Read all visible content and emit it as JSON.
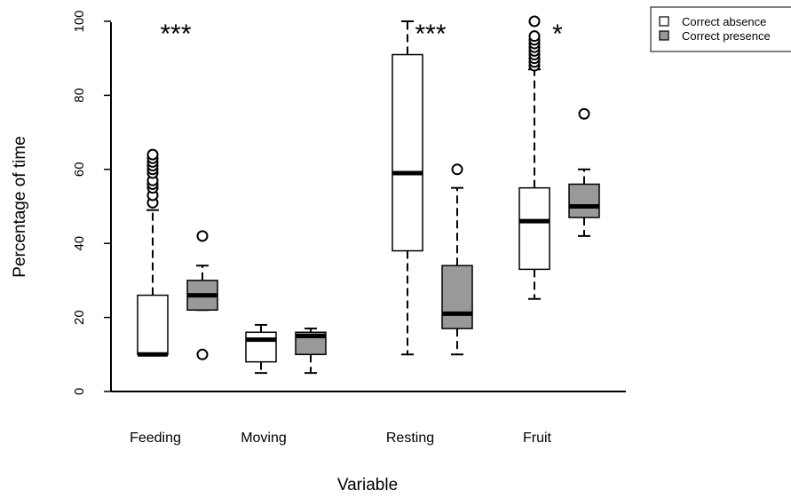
{
  "chart_data": {
    "type": "boxplot",
    "xlabel": "Variable",
    "ylabel": "Percentage of time",
    "ylim": [
      0,
      100
    ],
    "yticks": [
      "0",
      "20",
      "40",
      "60",
      "80",
      "100"
    ],
    "categories": [
      "Feeding",
      "Moving",
      "Resting",
      "Fruit"
    ],
    "series": [
      {
        "name": "Correct absence",
        "color": "#ffffff",
        "boxes": [
          {
            "min": 10,
            "q1": 10,
            "median": 10,
            "q3": 26,
            "max": 49,
            "outliers": [
              51,
              53,
              55,
              56,
              57,
              59,
              60,
              61,
              62,
              63,
              64
            ]
          },
          {
            "min": 5,
            "q1": 8,
            "median": 14,
            "q3": 16,
            "max": 18,
            "outliers": []
          },
          {
            "min": 10,
            "q1": 38,
            "median": 59,
            "q3": 91,
            "max": 100,
            "outliers": []
          },
          {
            "min": 25,
            "q1": 33,
            "median": 46,
            "q3": 55,
            "max": 87,
            "outliers": [
              88,
              89,
              90,
              91,
              92,
              93,
              94,
              95,
              96,
              100
            ]
          }
        ]
      },
      {
        "name": "Correct presence",
        "color": "#999999",
        "boxes": [
          {
            "min": 22,
            "q1": 22,
            "median": 26,
            "q3": 30,
            "max": 34,
            "outliers": [
              10,
              42
            ]
          },
          {
            "min": 5,
            "q1": 10,
            "median": 15,
            "q3": 16,
            "max": 17,
            "outliers": []
          },
          {
            "min": 10,
            "q1": 17,
            "median": 21,
            "q3": 34,
            "max": 55,
            "outliers": [
              60
            ]
          },
          {
            "min": 42,
            "q1": 47,
            "median": 50,
            "q3": 56,
            "max": 60,
            "outliers": [
              75
            ]
          }
        ]
      }
    ],
    "annotations": [
      "***",
      "",
      "***",
      "*"
    ],
    "legend_position": "top-right"
  }
}
